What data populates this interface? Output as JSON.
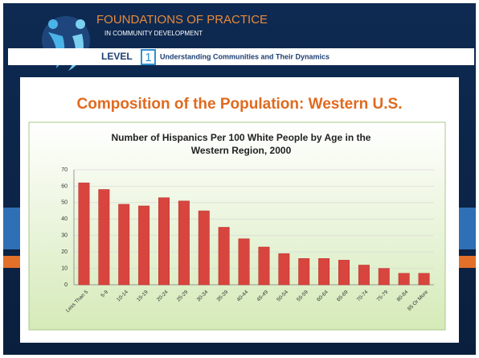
{
  "header": {
    "title": "FOUNDATIONS OF PRACTICE",
    "subtitle": "IN COMMUNITY DEVELOPMENT"
  },
  "level": {
    "label": "LEVEL",
    "number": "1",
    "text": "Understanding Communities and Their Dynamics"
  },
  "slide": {
    "title": "Composition of the Population:  Western U.S."
  },
  "chart_data": {
    "type": "bar",
    "title": "Number of Hispanics Per 100 White People by Age in the Western Region, 2000",
    "categories": [
      "Less Than 5",
      "5-9",
      "10-14",
      "15-19",
      "20-24",
      "25-29",
      "30-34",
      "35-39",
      "40-44",
      "45-49",
      "50-54",
      "55-59",
      "60-64",
      "65-69",
      "70-74",
      "75-79",
      "80-84",
      "85 Or More"
    ],
    "values": [
      62,
      58,
      49,
      48,
      53,
      51,
      45,
      35,
      28,
      23,
      19,
      16,
      16,
      15,
      12,
      10,
      7,
      7
    ],
    "color": "#d8453f",
    "ylim": [
      0,
      70
    ],
    "yticks": [
      0,
      10,
      20,
      30,
      40,
      50,
      60,
      70
    ],
    "grid": true
  }
}
